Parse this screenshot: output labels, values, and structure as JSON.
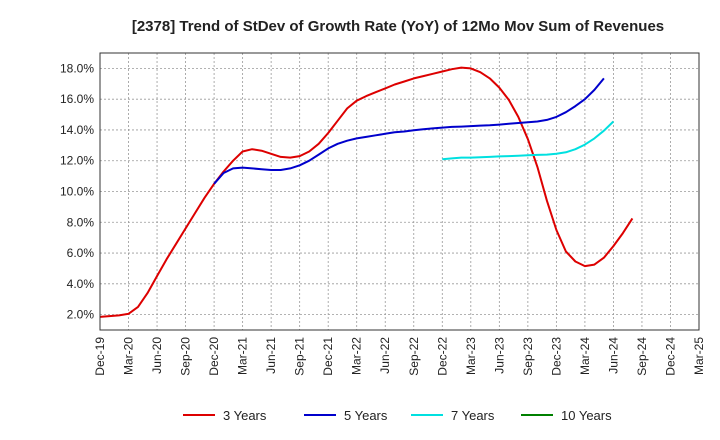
{
  "chart_data": {
    "type": "line",
    "title": "[2378]  Trend of StDev of Growth Rate (YoY) of 12Mo Mov Sum of Revenues",
    "xlabel": "",
    "ylabel": "",
    "ylim": [
      1.0,
      19.0
    ],
    "y_ticks": [
      2.0,
      4.0,
      6.0,
      8.0,
      10.0,
      12.0,
      14.0,
      16.0,
      18.0
    ],
    "y_tick_labels": [
      "2.0%",
      "4.0%",
      "6.0%",
      "8.0%",
      "10.0%",
      "12.0%",
      "14.0%",
      "16.0%",
      "18.0%"
    ],
    "x_tick_labels": [
      "Dec-19",
      "Mar-20",
      "Jun-20",
      "Sep-20",
      "Dec-20",
      "Mar-21",
      "Jun-21",
      "Sep-21",
      "Dec-21",
      "Mar-22",
      "Jun-22",
      "Sep-22",
      "Dec-22",
      "Mar-23",
      "Jun-23",
      "Sep-23",
      "Dec-23",
      "Mar-24",
      "Jun-24",
      "Sep-24",
      "Dec-24",
      "Mar-25"
    ],
    "grid": true,
    "legend_position": "bottom",
    "series": [
      {
        "name": "3 Years",
        "color": "#dd0000",
        "start_index": 0,
        "values": [
          1.85,
          1.9,
          1.95,
          2.05,
          2.5,
          3.4,
          4.5,
          5.6,
          6.6,
          7.6,
          8.6,
          9.6,
          10.5,
          11.3,
          12.0,
          12.6,
          12.75,
          12.65,
          12.45,
          12.25,
          12.2,
          12.3,
          12.6,
          13.1,
          13.8,
          14.6,
          15.4,
          15.9,
          16.2,
          16.45,
          16.7,
          16.95,
          17.15,
          17.35,
          17.5,
          17.65,
          17.8,
          17.95,
          18.05,
          18.0,
          17.75,
          17.35,
          16.75,
          15.95,
          14.85,
          13.4,
          11.6,
          9.4,
          7.5,
          6.1,
          5.45,
          5.15,
          5.25,
          5.7,
          6.45,
          7.3,
          8.25
        ]
      },
      {
        "name": "5 Years",
        "color": "#0000cc",
        "start_index": 12,
        "values": [
          10.5,
          11.2,
          11.5,
          11.55,
          11.5,
          11.45,
          11.4,
          11.4,
          11.5,
          11.7,
          12.0,
          12.4,
          12.8,
          13.1,
          13.3,
          13.45,
          13.55,
          13.65,
          13.75,
          13.85,
          13.9,
          13.98,
          14.05,
          14.1,
          14.15,
          14.2,
          14.22,
          14.25,
          14.28,
          14.3,
          14.35,
          14.4,
          14.45,
          14.5,
          14.55,
          14.65,
          14.85,
          15.15,
          15.55,
          16.0,
          16.6,
          17.35
        ]
      },
      {
        "name": "7 Years",
        "color": "#00e0e0",
        "start_index": 36,
        "values": [
          12.1,
          12.15,
          12.2,
          12.2,
          12.22,
          12.25,
          12.28,
          12.3,
          12.32,
          12.35,
          12.38,
          12.4,
          12.45,
          12.55,
          12.75,
          13.05,
          13.45,
          13.95,
          14.55
        ]
      },
      {
        "name": "10 Years",
        "color": "#008000",
        "start_index": 0,
        "values": []
      }
    ]
  }
}
